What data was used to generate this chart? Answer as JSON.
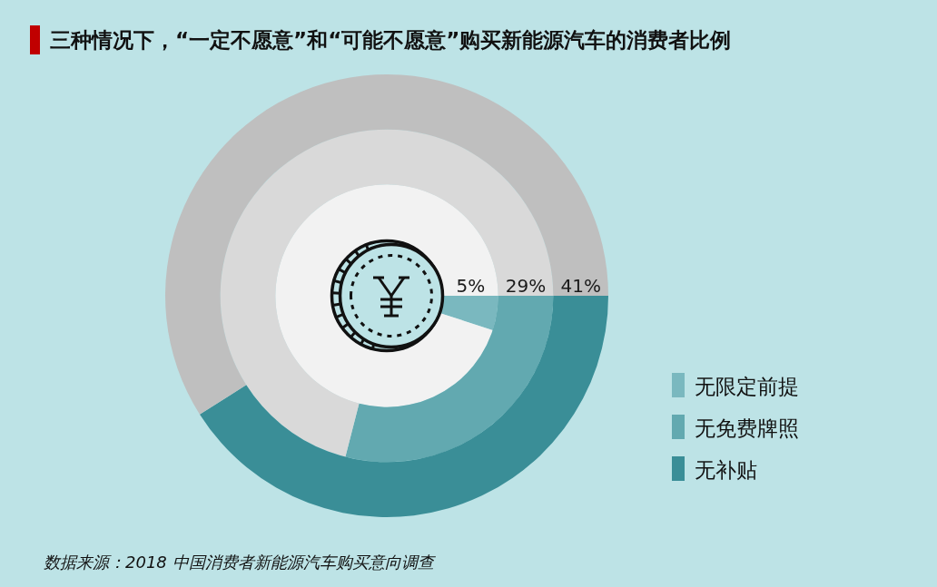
{
  "chart_data": {
    "type": "donut",
    "title": "三种情况下，“一定不愿意”和“可能不愿意”购买新能源汽车的消费者比例",
    "categories": [
      null,
      null
    ],
    "series": [
      {
        "name": "无限定前提",
        "values": [
          5,
          95
        ],
        "colors": [
          "#7ab8bf",
          "#f2f2f2"
        ],
        "value_labels": [
          "5%",
          null
        ]
      },
      {
        "name": "无免费牌照",
        "values": [
          29,
          71
        ],
        "colors": [
          "#62a9b0",
          "#d9d9d9"
        ],
        "value_labels": [
          "29%",
          null
        ]
      },
      {
        "name": "无补贴",
        "values": [
          41,
          59
        ],
        "colors": [
          "#3a8e97",
          "#bfbfbf"
        ],
        "value_labels": [
          "41%",
          null
        ]
      }
    ],
    "legend": "right",
    "annotations": [
      "数据来源：2018 中国消费者新能源汽车购买意向调查"
    ]
  }
}
